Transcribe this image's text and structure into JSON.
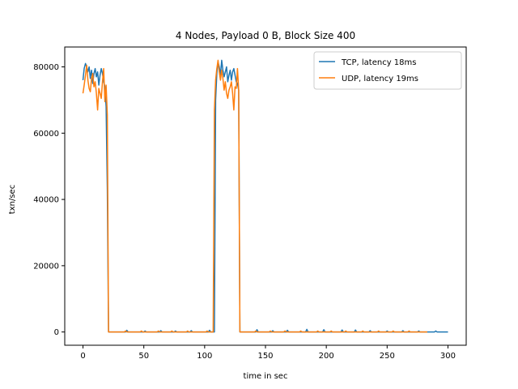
{
  "chart_data": {
    "type": "line",
    "title": "4 Nodes, Payload 0 B, Block Size 400",
    "xlabel": "time in sec",
    "ylabel": "txn/sec",
    "xlim": [
      -15,
      315
    ],
    "ylim": [
      -4000,
      86000
    ],
    "xticks": [
      0,
      50,
      100,
      150,
      200,
      250,
      300
    ],
    "yticks": [
      0,
      20000,
      40000,
      60000,
      80000
    ],
    "xtick_labels": [
      "0",
      "50",
      "100",
      "150",
      "200",
      "250",
      "300"
    ],
    "ytick_labels": [
      "0",
      "20000",
      "40000",
      "60000",
      "80000"
    ],
    "grid": false,
    "legend_position": "top-right",
    "series": [
      {
        "name": "TCP, latency 18ms",
        "color": "#1f77b4",
        "x": [
          0,
          1,
          2,
          3,
          4,
          5,
          6,
          7,
          8,
          9,
          10,
          11,
          12,
          13,
          14,
          15,
          16,
          17,
          18,
          19,
          20,
          21,
          22,
          25,
          30,
          35,
          36,
          37,
          40,
          45,
          50,
          51,
          52,
          55,
          60,
          63,
          64,
          65,
          70,
          75,
          76,
          77,
          80,
          85,
          88,
          89,
          90,
          95,
          100,
          103,
          104,
          105,
          106,
          107,
          108,
          109,
          110,
          111,
          112,
          113,
          114,
          115,
          116,
          117,
          118,
          119,
          120,
          121,
          122,
          123,
          124,
          125,
          126,
          127,
          128,
          129,
          130,
          131,
          135,
          140,
          142,
          143,
          144,
          145,
          150,
          155,
          156,
          157,
          160,
          165,
          167,
          168,
          169,
          170,
          175,
          180,
          183,
          184,
          185,
          186,
          190,
          195,
          197,
          198,
          199,
          205,
          210,
          212,
          213,
          214,
          220,
          223,
          224,
          225,
          230,
          235,
          236,
          237,
          240,
          245,
          249,
          250,
          251,
          255,
          260,
          262,
          263,
          264,
          270,
          275,
          276,
          277,
          280,
          285,
          289,
          290,
          291,
          295,
          300
        ],
        "y": [
          76000,
          79500,
          81000,
          80000,
          78500,
          80000,
          76500,
          79000,
          75000,
          78000,
          79500,
          77000,
          78500,
          74500,
          77500,
          79500,
          78000,
          75500,
          74000,
          68000,
          43000,
          0,
          0,
          0,
          0,
          0,
          500,
          0,
          0,
          0,
          0,
          300,
          0,
          0,
          0,
          0,
          400,
          0,
          0,
          0,
          300,
          0,
          0,
          0,
          0,
          400,
          0,
          0,
          0,
          0,
          500,
          0,
          0,
          0,
          0,
          70000,
          78000,
          81500,
          80000,
          77500,
          82000,
          79000,
          77000,
          78500,
          80000,
          75500,
          77500,
          79000,
          76000,
          78500,
          79500,
          77500,
          75500,
          75000,
          73000,
          0,
          0,
          0,
          0,
          0,
          0,
          700,
          0,
          0,
          0,
          0,
          400,
          0,
          0,
          0,
          0,
          500,
          0,
          0,
          0,
          0,
          0,
          800,
          0,
          0,
          0,
          0,
          0,
          700,
          0,
          0,
          0,
          0,
          600,
          0,
          0,
          0,
          600,
          0,
          0,
          0,
          400,
          0,
          0,
          0,
          0,
          300,
          0,
          0,
          0,
          0,
          400,
          0,
          0,
          0,
          300,
          0,
          0,
          0,
          0,
          300,
          0,
          0,
          0
        ]
      },
      {
        "name": "UDP, latency 19ms",
        "color": "#ff7f0e",
        "x": [
          0,
          1,
          2,
          3,
          4,
          5,
          6,
          7,
          8,
          9,
          10,
          11,
          12,
          13,
          14,
          15,
          16,
          17,
          18,
          19,
          20,
          21,
          22,
          25,
          30,
          34,
          35,
          36,
          40,
          45,
          47,
          48,
          49,
          55,
          60,
          61,
          62,
          63,
          70,
          72,
          73,
          74,
          80,
          85,
          86,
          87,
          90,
          95,
          100,
          101,
          102,
          103,
          104,
          105,
          106,
          107,
          108,
          109,
          110,
          111,
          112,
          113,
          114,
          115,
          116,
          117,
          118,
          119,
          120,
          121,
          122,
          123,
          124,
          125,
          126,
          127,
          128,
          129,
          130,
          131,
          135,
          140,
          141,
          142,
          143,
          145,
          150,
          153,
          154,
          155,
          160,
          165,
          166,
          167,
          170,
          175,
          178,
          179,
          180,
          185,
          190,
          192,
          193,
          194,
          200,
          203,
          204,
          205,
          210,
          215,
          216,
          217,
          220,
          225,
          229,
          230,
          231,
          235,
          240,
          242,
          243,
          244,
          250,
          254,
          255,
          256,
          260,
          265,
          267,
          268,
          269,
          275,
          280,
          283
        ],
        "y": [
          72000,
          74500,
          77500,
          80500,
          76000,
          73500,
          72500,
          76500,
          78000,
          74000,
          75500,
          72000,
          67000,
          73500,
          72000,
          70500,
          75500,
          79500,
          69500,
          74500,
          65500,
          0,
          0,
          0,
          0,
          0,
          300,
          0,
          0,
          0,
          0,
          300,
          0,
          0,
          0,
          0,
          300,
          0,
          0,
          0,
          300,
          0,
          0,
          0,
          300,
          0,
          0,
          0,
          0,
          0,
          300,
          0,
          0,
          0,
          0,
          0,
          67000,
          76000,
          79500,
          82000,
          78500,
          76000,
          79000,
          76500,
          73000,
          75500,
          72000,
          70500,
          73000,
          74000,
          75500,
          72000,
          67000,
          74000,
          73500,
          79500,
          73000,
          0,
          0,
          0,
          0,
          0,
          0,
          300,
          0,
          0,
          0,
          0,
          300,
          0,
          0,
          0,
          300,
          0,
          0,
          0,
          0,
          300,
          0,
          0,
          0,
          0,
          300,
          0,
          0,
          0,
          300,
          0,
          0,
          0,
          300,
          0,
          0,
          0,
          0,
          300,
          0,
          0,
          0,
          0,
          300,
          0,
          0,
          0,
          300,
          0,
          0,
          0,
          0,
          300,
          0,
          0,
          0,
          0
        ]
      }
    ]
  }
}
